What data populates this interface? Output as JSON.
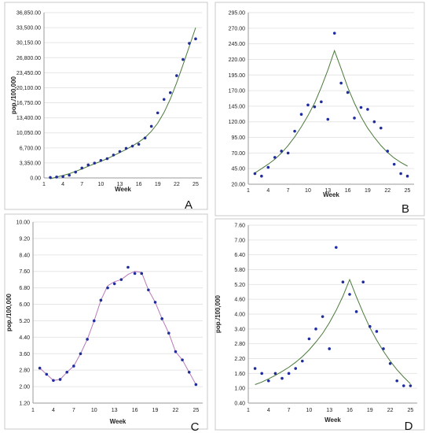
{
  "chart_data": [
    {
      "id": "A",
      "type": "scatter",
      "panel_label": "A",
      "xlabel": "Week",
      "ylabel": "pop./100,000",
      "xticks": [
        1,
        4,
        7,
        10,
        13,
        16,
        19,
        22,
        25
      ],
      "xtick_labels": [
        "1",
        "4",
        "7",
        "10",
        "13",
        "16",
        "19",
        "22",
        "25"
      ],
      "xlim": [
        1,
        26
      ],
      "yticks": [
        0,
        3350,
        6700,
        10050,
        13400,
        16750,
        20100,
        23450,
        26800,
        30150,
        33500,
        36850
      ],
      "ytick_labels": [
        "0.00",
        "3,350.00",
        "6,700.00",
        "10,050.00",
        "13,400.00",
        "16,750.00",
        "20,100.00",
        "23,450.00",
        "26,800.00",
        "30,150.00",
        "33,500.00",
        "36,850.00"
      ],
      "ylim": [
        0,
        36850
      ],
      "points": [
        [
          2,
          100
        ],
        [
          3,
          200
        ],
        [
          4,
          300
        ],
        [
          5,
          600
        ],
        [
          6,
          1300
        ],
        [
          7,
          2200
        ],
        [
          8,
          2900
        ],
        [
          9,
          3300
        ],
        [
          10,
          3900
        ],
        [
          11,
          4300
        ],
        [
          12,
          5100
        ],
        [
          13,
          5900
        ],
        [
          14,
          6600
        ],
        [
          15,
          7100
        ],
        [
          16,
          7500
        ],
        [
          17,
          8900
        ],
        [
          18,
          11500
        ],
        [
          19,
          14500
        ],
        [
          20,
          17500
        ],
        [
          21,
          19000
        ],
        [
          22,
          22800
        ],
        [
          23,
          26400
        ],
        [
          24,
          30000
        ],
        [
          25,
          31000
        ]
      ],
      "curve": [
        [
          2,
          -200
        ],
        [
          3,
          200
        ],
        [
          4,
          550
        ],
        [
          5,
          950
        ],
        [
          6,
          1450
        ],
        [
          7,
          2000
        ],
        [
          8,
          2600
        ],
        [
          9,
          3150
        ],
        [
          10,
          3700
        ],
        [
          11,
          4300
        ],
        [
          12,
          4950
        ],
        [
          13,
          5650
        ],
        [
          14,
          6350
        ],
        [
          15,
          7150
        ],
        [
          16,
          8000
        ],
        [
          17,
          9000
        ],
        [
          18,
          10400
        ],
        [
          19,
          12200
        ],
        [
          20,
          14600
        ],
        [
          21,
          17600
        ],
        [
          22,
          21200
        ],
        [
          23,
          25200
        ],
        [
          24,
          29300
        ],
        [
          25,
          33500
        ]
      ],
      "colors": {
        "points": "#1f2d9e",
        "curve": "#4a7a3a"
      }
    },
    {
      "id": "B",
      "type": "scatter",
      "panel_label": "B",
      "xlabel": "Week",
      "ylabel": "",
      "xticks": [
        1,
        4,
        7,
        10,
        13,
        16,
        19,
        22,
        25
      ],
      "xtick_labels": [
        "1",
        "4",
        "7",
        "10",
        "13",
        "16",
        "19",
        "22",
        "25"
      ],
      "xlim": [
        1,
        26
      ],
      "yticks": [
        20,
        45,
        70,
        95,
        120,
        145,
        170,
        195,
        220,
        245,
        270,
        295
      ],
      "ytick_labels": [
        "20.00",
        "45.00",
        "70.00",
        "95.00",
        "120.00",
        "145.00",
        "170.00",
        "195.00",
        "220.00",
        "245.00",
        "270.00",
        "295.00"
      ],
      "ylim": [
        20,
        295
      ],
      "points": [
        [
          2,
          37
        ],
        [
          3,
          33
        ],
        [
          4,
          47
        ],
        [
          5,
          63
        ],
        [
          6,
          73
        ],
        [
          7,
          70
        ],
        [
          8,
          105
        ],
        [
          9,
          132
        ],
        [
          10,
          147
        ],
        [
          11,
          144
        ],
        [
          12,
          152
        ],
        [
          13,
          124
        ],
        [
          14,
          262
        ],
        [
          15,
          182
        ],
        [
          16,
          167
        ],
        [
          17,
          126
        ],
        [
          18,
          143
        ],
        [
          19,
          140
        ],
        [
          20,
          120
        ],
        [
          21,
          110
        ],
        [
          22,
          73
        ],
        [
          23,
          52
        ],
        [
          24,
          37
        ],
        [
          25,
          33
        ]
      ],
      "curve": [
        [
          2,
          38
        ],
        [
          3,
          45
        ],
        [
          4,
          52
        ],
        [
          5,
          60
        ],
        [
          6,
          70
        ],
        [
          7,
          82
        ],
        [
          8,
          96
        ],
        [
          9,
          112
        ],
        [
          10,
          130
        ],
        [
          11,
          150
        ],
        [
          12,
          175
        ],
        [
          13,
          203
        ],
        [
          14,
          234
        ],
        [
          15,
          205
        ],
        [
          16,
          175
        ],
        [
          17,
          150
        ],
        [
          18,
          128
        ],
        [
          19,
          110
        ],
        [
          20,
          95
        ],
        [
          21,
          82
        ],
        [
          22,
          71
        ],
        [
          23,
          62
        ],
        [
          24,
          55
        ],
        [
          25,
          49
        ]
      ],
      "colors": {
        "points": "#1f2d9e",
        "curve": "#4a7a3a"
      }
    },
    {
      "id": "C",
      "type": "line",
      "panel_label": "C",
      "xlabel": "Week",
      "ylabel": "pop./100,000",
      "xticks": [
        1,
        4,
        7,
        10,
        13,
        16,
        19,
        22,
        25
      ],
      "xtick_labels": [
        "1",
        "4",
        "7",
        "10",
        "13",
        "16",
        "19",
        "22",
        "25"
      ],
      "xlim": [
        1,
        26
      ],
      "yticks": [
        1.2,
        2.0,
        2.8,
        3.6,
        4.4,
        5.2,
        6.0,
        6.8,
        7.6,
        8.4,
        9.2,
        10.0
      ],
      "ytick_labels": [
        "1.20",
        "2.00",
        "2.80",
        "3.60",
        "4.40",
        "5.20",
        "6.00",
        "6.80",
        "7.60",
        "8.40",
        "9.20",
        "10.00"
      ],
      "ylim": [
        1.2,
        10.0
      ],
      "points": [
        [
          2,
          2.9
        ],
        [
          3,
          2.6
        ],
        [
          4,
          2.3
        ],
        [
          5,
          2.35
        ],
        [
          6,
          2.7
        ],
        [
          7,
          3.0
        ],
        [
          8,
          3.6
        ],
        [
          9,
          4.3
        ],
        [
          10,
          5.2
        ],
        [
          11,
          6.2
        ],
        [
          12,
          6.8
        ],
        [
          13,
          7.0
        ],
        [
          14,
          7.2
        ],
        [
          15,
          7.8
        ],
        [
          16,
          7.5
        ],
        [
          17,
          7.5
        ],
        [
          18,
          6.7
        ],
        [
          19,
          6.1
        ],
        [
          20,
          5.3
        ],
        [
          21,
          4.6
        ],
        [
          22,
          3.7
        ],
        [
          23,
          3.3
        ],
        [
          24,
          2.7
        ],
        [
          25,
          2.1
        ]
      ],
      "curve": [
        [
          2,
          2.9
        ],
        [
          3,
          2.6
        ],
        [
          4,
          2.3
        ],
        [
          5,
          2.35
        ],
        [
          6,
          2.7
        ],
        [
          7,
          3.0
        ],
        [
          8,
          3.6
        ],
        [
          9,
          4.3
        ],
        [
          10,
          5.2
        ],
        [
          11,
          6.2
        ],
        [
          12,
          6.9
        ],
        [
          13,
          7.1
        ],
        [
          14,
          7.2
        ],
        [
          15,
          7.45
        ],
        [
          16,
          7.6
        ],
        [
          17,
          7.55
        ],
        [
          18,
          6.7
        ],
        [
          19,
          6.1
        ],
        [
          20,
          5.3
        ],
        [
          21,
          4.6
        ],
        [
          22,
          3.7
        ],
        [
          23,
          3.3
        ],
        [
          24,
          2.7
        ],
        [
          25,
          2.1
        ]
      ],
      "colors": {
        "points": "#1f2d9e",
        "curve": "#b87ab8"
      }
    },
    {
      "id": "D",
      "type": "scatter",
      "panel_label": "D",
      "xlabel": "Week",
      "ylabel": "pop./100,000",
      "xticks": [
        1,
        4,
        7,
        10,
        13,
        16,
        19,
        22,
        25
      ],
      "xtick_labels": [
        "1",
        "4",
        "7",
        "10",
        "13",
        "16",
        "19",
        "22",
        "25"
      ],
      "xlim": [
        1,
        26
      ],
      "yticks": [
        0.4,
        1.0,
        1.6,
        2.2,
        2.8,
        3.4,
        4.0,
        4.6,
        5.2,
        5.8,
        6.4,
        7.0,
        7.6
      ],
      "ytick_labels": [
        "0.40",
        "1.00",
        "1.60",
        "2.20",
        "2.80",
        "3.40",
        "4.00",
        "4.60",
        "5.20",
        "5.80",
        "6.40",
        "7.00",
        "7.60"
      ],
      "ylim": [
        0.4,
        7.6
      ],
      "points": [
        [
          2,
          1.8
        ],
        [
          3,
          1.6
        ],
        [
          4,
          1.3
        ],
        [
          5,
          1.6
        ],
        [
          6,
          1.4
        ],
        [
          7,
          1.6
        ],
        [
          8,
          1.8
        ],
        [
          9,
          2.1
        ],
        [
          10,
          3.0
        ],
        [
          11,
          3.4
        ],
        [
          12,
          3.9
        ],
        [
          13,
          2.6
        ],
        [
          14,
          6.7
        ],
        [
          15,
          5.3
        ],
        [
          16,
          4.8
        ],
        [
          17,
          4.1
        ],
        [
          18,
          5.3
        ],
        [
          19,
          3.5
        ],
        [
          20,
          3.3
        ],
        [
          21,
          2.6
        ],
        [
          22,
          2.0
        ],
        [
          23,
          1.3
        ],
        [
          24,
          1.1
        ],
        [
          25,
          1.1
        ]
      ],
      "curve": [
        [
          2,
          1.15
        ],
        [
          3,
          1.25
        ],
        [
          4,
          1.38
        ],
        [
          5,
          1.52
        ],
        [
          6,
          1.68
        ],
        [
          7,
          1.85
        ],
        [
          8,
          2.05
        ],
        [
          9,
          2.28
        ],
        [
          10,
          2.55
        ],
        [
          11,
          2.87
        ],
        [
          12,
          3.22
        ],
        [
          13,
          3.65
        ],
        [
          14,
          4.15
        ],
        [
          15,
          4.72
        ],
        [
          16,
          5.4
        ],
        [
          17,
          4.7
        ],
        [
          18,
          4.05
        ],
        [
          19,
          3.45
        ],
        [
          20,
          2.95
        ],
        [
          21,
          2.5
        ],
        [
          22,
          2.1
        ],
        [
          23,
          1.75
        ],
        [
          24,
          1.45
        ],
        [
          25,
          1.18
        ]
      ],
      "colors": {
        "points": "#1f2d9e",
        "curve": "#4a7a3a"
      }
    }
  ]
}
